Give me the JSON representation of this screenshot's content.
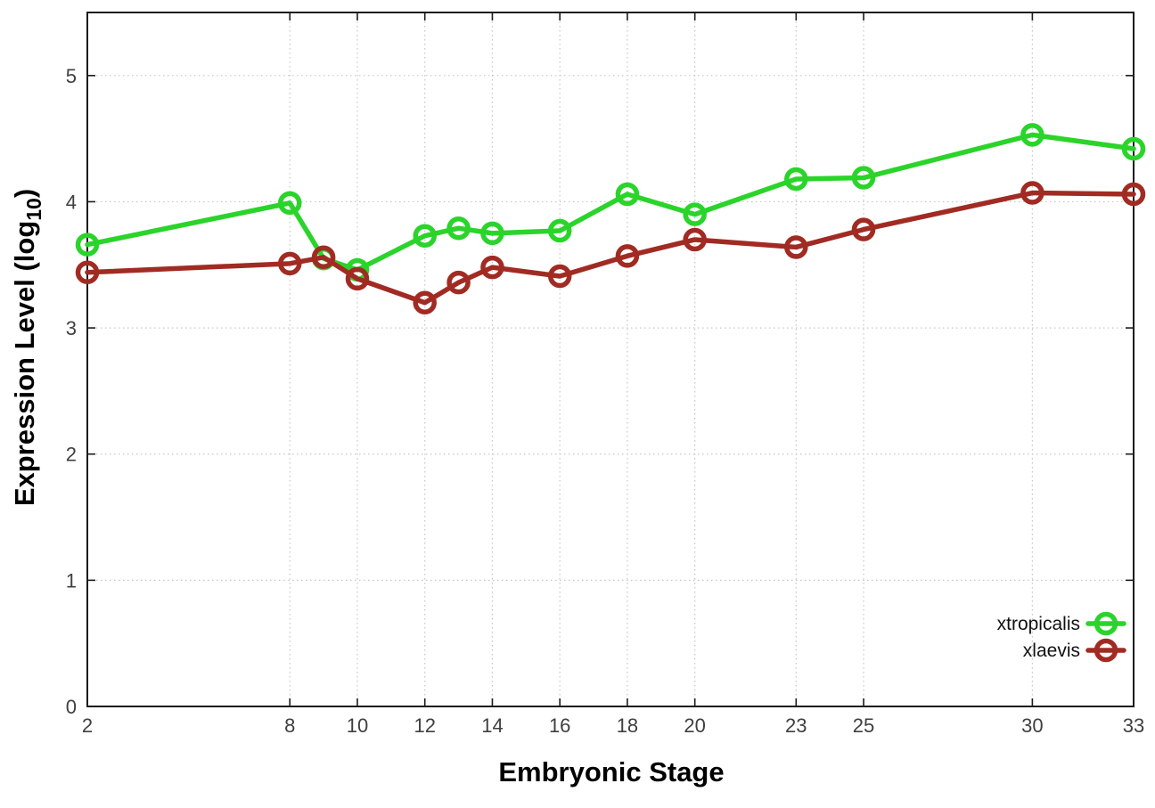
{
  "chart_data": {
    "type": "line",
    "title": "",
    "xlabel": "Embryonic Stage",
    "ylabel": {
      "text": "Expression Level (log10)",
      "main": "Expression Level (log",
      "sub": "10",
      "suffix": ")"
    },
    "x": [
      2,
      8,
      9,
      10,
      12,
      13,
      14,
      16,
      18,
      20,
      23,
      25,
      30,
      33
    ],
    "series": [
      {
        "name": "xtropicalis",
        "color": "#2ad42a",
        "values": [
          3.66,
          3.99,
          3.55,
          3.46,
          3.73,
          3.79,
          3.75,
          3.77,
          4.06,
          3.9,
          4.18,
          4.19,
          4.53,
          4.42
        ]
      },
      {
        "name": "xlaevis",
        "color": "#a12b23",
        "values": [
          3.44,
          3.51,
          3.56,
          3.39,
          3.2,
          3.36,
          3.48,
          3.41,
          3.57,
          3.7,
          3.64,
          3.78,
          4.07,
          4.06
        ]
      }
    ],
    "x_ticks": [
      2,
      8,
      10,
      12,
      14,
      16,
      18,
      20,
      23,
      25,
      30,
      33
    ],
    "y_ticks": [
      0,
      1,
      2,
      3,
      4,
      5
    ],
    "xlim": [
      2,
      33
    ],
    "ylim": [
      0,
      5.5
    ],
    "grid": true,
    "marker": "open-circle",
    "legend_position": "bottom-right"
  },
  "colors": {
    "background": "#ffffff",
    "frame": "#1c1c1c",
    "grid": "#c6c6c6",
    "tick_label": "#3f3f3f",
    "axis_title": "#000000",
    "xtropicalis": "#2ad42a",
    "xlaevis": "#a12b23"
  }
}
